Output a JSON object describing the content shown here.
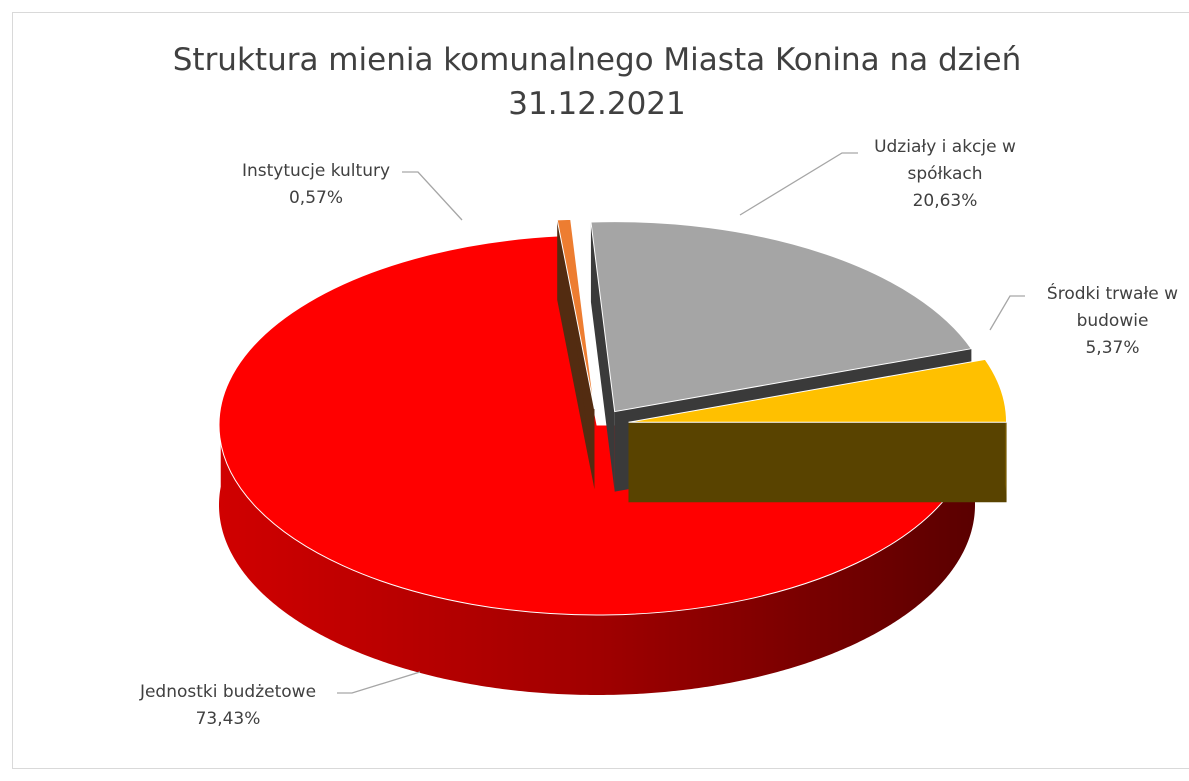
{
  "chart_data": {
    "type": "pie3d",
    "title": "Struktura mienia komunalnego Miasta Konina na dzień 31.12.2021",
    "categories": [
      "Jednostki budżetowe",
      "Instytucje kultury",
      "Udziały i akcje w spółkach",
      "Środki trwałe w budowie"
    ],
    "values": [
      73.43,
      0.57,
      20.63,
      5.37
    ],
    "value_labels": [
      "73,43%",
      "0,57%",
      "20,63%",
      "5,37%"
    ],
    "colors": [
      "#ff0000",
      "#ed7d31",
      "#a5a5a5",
      "#ffc000"
    ]
  }
}
